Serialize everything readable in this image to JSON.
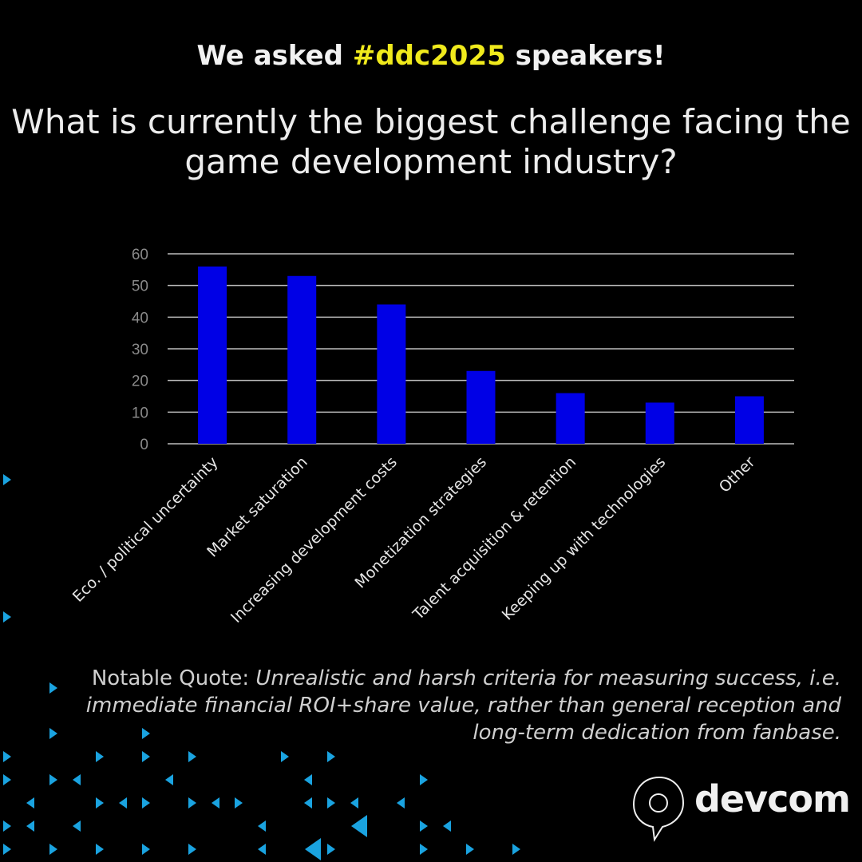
{
  "header": {
    "prefix": "We asked ",
    "hashtag": "#ddc2025",
    "suffix": " speakers!",
    "question": "What is currently the biggest challenge facing the game development industry?"
  },
  "chart_data": {
    "type": "bar",
    "title": "",
    "xlabel": "",
    "ylabel": "",
    "categories": [
      "Eco. / political uncertainty",
      "Market saturation",
      "Increasing development costs",
      "Monetization strategies",
      "Talent acquisition & retention",
      "Keeping up with technologies",
      "Other"
    ],
    "values": [
      56,
      53,
      44,
      23,
      16,
      13,
      15
    ],
    "ylim": [
      0,
      60
    ],
    "yticks": [
      0,
      10,
      20,
      30,
      40,
      50,
      60
    ],
    "grid": true,
    "bar_color": "#0000e6"
  },
  "quote": {
    "label": "Notable Quote: ",
    "text": "Unrealistic and harsh criteria for measuring success, i.e. immediate financial ROI+share value, rather than general reception and long-term dedication from fanbase."
  },
  "brand": {
    "name": "devcom",
    "accent": "#1aa3e0",
    "highlight": "#f0ea1c"
  }
}
